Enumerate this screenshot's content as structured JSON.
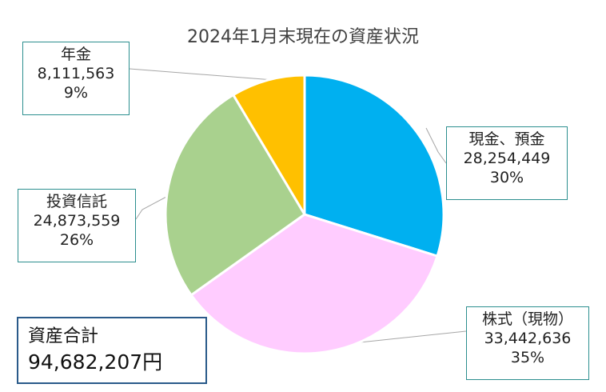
{
  "chart_data": {
    "type": "pie",
    "title": "2024年1月末現在の資産状況",
    "slices": [
      {
        "name": "現金、預金",
        "value": 28254449,
        "value_label": "28,254,449",
        "percent_label": "30%",
        "color": "#00b0f0"
      },
      {
        "name": "株式（現物）",
        "value": 33442636,
        "value_label": "33,442,636",
        "percent_label": "35%",
        "color": "#ffccff"
      },
      {
        "name": "投資信託",
        "value": 24873559,
        "value_label": "24,873,559",
        "percent_label": "26%",
        "color": "#a9d18e"
      },
      {
        "name": "年金",
        "value": 8111563,
        "value_label": "8,111,563",
        "percent_label": "9%",
        "color": "#ffc000"
      }
    ]
  },
  "total": {
    "label": "資産合計",
    "value": "94,682,207円"
  }
}
